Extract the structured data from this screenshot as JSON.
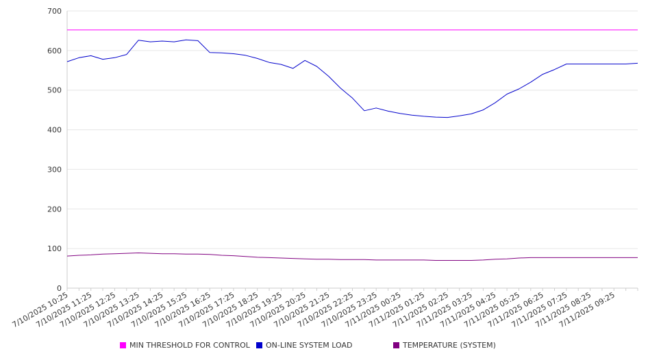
{
  "chart_data": {
    "type": "line",
    "title": "",
    "xlabel": "",
    "ylabel": "",
    "ylim": [
      0,
      700
    ],
    "yticks": [
      0,
      100,
      200,
      300,
      400,
      500,
      600,
      700
    ],
    "grid": true,
    "legend_position": "bottom",
    "x_tick_labels": [
      "7/10/2025 10:25",
      "7/10/2025 11:25",
      "7/10/2025 12:25",
      "7/10/2025 13:25",
      "7/10/2025 14:25",
      "7/10/2025 15:25",
      "7/10/2025 16:25",
      "7/10/2025 17:25",
      "7/10/2025 18:25",
      "7/10/2025 19:25",
      "7/10/2025 20:25",
      "7/10/2025 21:25",
      "7/10/2025 22:25",
      "7/10/2025 23:25",
      "7/11/2025 00:25",
      "7/11/2025 01:25",
      "7/11/2025 02:25",
      "7/11/2025 03:25",
      "7/11/2025 04:25",
      "7/11/2025 05:25",
      "7/11/2025 06:25",
      "7/11/2025 07:25",
      "7/11/2025 08:25",
      "7/11/2025 09:25"
    ],
    "x": [
      "7/10/2025 10:25",
      "7/10/2025 10:55",
      "7/10/2025 11:25",
      "7/10/2025 11:55",
      "7/10/2025 12:25",
      "7/10/2025 12:55",
      "7/10/2025 13:25",
      "7/10/2025 13:55",
      "7/10/2025 14:25",
      "7/10/2025 14:55",
      "7/10/2025 15:25",
      "7/10/2025 15:55",
      "7/10/2025 16:25",
      "7/10/2025 16:55",
      "7/10/2025 17:25",
      "7/10/2025 17:55",
      "7/10/2025 18:25",
      "7/10/2025 18:55",
      "7/10/2025 19:25",
      "7/10/2025 19:55",
      "7/10/2025 20:25",
      "7/10/2025 20:55",
      "7/10/2025 21:25",
      "7/10/2025 21:55",
      "7/10/2025 22:25",
      "7/10/2025 22:55",
      "7/10/2025 23:25",
      "7/10/2025 23:55",
      "7/11/2025 00:25",
      "7/11/2025 00:55",
      "7/11/2025 01:25",
      "7/11/2025 01:55",
      "7/11/2025 02:25",
      "7/11/2025 02:55",
      "7/11/2025 03:25",
      "7/11/2025 03:55",
      "7/11/2025 04:25",
      "7/11/2025 04:55",
      "7/11/2025 05:25",
      "7/11/2025 05:55",
      "7/11/2025 06:25",
      "7/11/2025 06:55",
      "7/11/2025 07:25",
      "7/11/2025 07:55",
      "7/11/2025 08:25",
      "7/11/2025 08:55",
      "7/11/2025 09:25",
      "7/11/2025 09:55",
      "7/11/2025 10:25"
    ],
    "series": [
      {
        "name": "MIN THRESHOLD FOR CONTROL",
        "color": "#ff00ff",
        "values": [
          652,
          652,
          652,
          652,
          652,
          652,
          652,
          652,
          652,
          652,
          652,
          652,
          652,
          652,
          652,
          652,
          652,
          652,
          652,
          652,
          652,
          652,
          652,
          652,
          652,
          652,
          652,
          652,
          652,
          652,
          652,
          652,
          652,
          652,
          652,
          652,
          652,
          652,
          652,
          652,
          652,
          652,
          652,
          652,
          652,
          652,
          652,
          652,
          652
        ]
      },
      {
        "name": "ON-LINE SYSTEM LOAD",
        "color": "#0000cc",
        "values": [
          572,
          582,
          587,
          578,
          582,
          590,
          626,
          622,
          624,
          622,
          627,
          625,
          595,
          594,
          592,
          588,
          580,
          570,
          565,
          555,
          575,
          560,
          535,
          505,
          480,
          448,
          455,
          447,
          441,
          437,
          434,
          432,
          431,
          435,
          440,
          450,
          468,
          490,
          503,
          520,
          540,
          552,
          566,
          566,
          566,
          566,
          566,
          566,
          568
        ]
      },
      {
        "name": "TEMPERATURE (SYSTEM)",
        "color": "#800080",
        "values": [
          81,
          83,
          84,
          86,
          87,
          88,
          89,
          88,
          87,
          87,
          86,
          86,
          85,
          83,
          82,
          80,
          78,
          77,
          76,
          75,
          74,
          73,
          73,
          72,
          72,
          72,
          71,
          71,
          71,
          71,
          71,
          70,
          70,
          70,
          70,
          71,
          73,
          74,
          76,
          77,
          77,
          77,
          77,
          77,
          77,
          77,
          77,
          77,
          77
        ]
      }
    ]
  }
}
